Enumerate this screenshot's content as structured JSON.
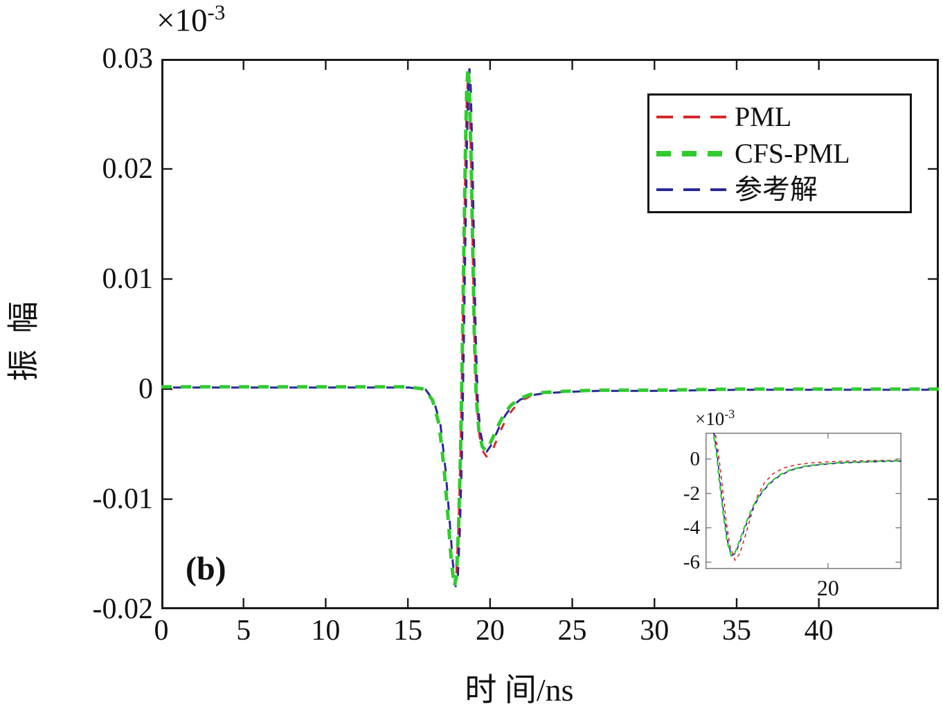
{
  "figure": {
    "panel_label": "(b)",
    "background": "#ffffff",
    "y_axis": {
      "title": "振 幅",
      "multiplier_base": "×10",
      "multiplier_exp": "-3"
    },
    "x_axis": {
      "title": "时 间/ns"
    },
    "legend": {
      "items": [
        {
          "label": "PML"
        },
        {
          "label": "CFS-PML"
        },
        {
          "label": "参考解"
        }
      ]
    }
  },
  "chart_data": {
    "type": "line",
    "title": "",
    "xlabel": "时 间/ns",
    "ylabel": "振 幅",
    "y_axis_multiplier": "×10^-3",
    "grid": false,
    "legend_position": "top-right",
    "x_range": [
      0,
      47.3
    ],
    "y_range": [
      -0.02,
      0.03
    ],
    "x_tick_values": [
      0,
      5,
      10,
      15,
      20,
      25,
      30,
      35,
      40
    ],
    "x_tick_labels": [
      "0",
      "5",
      "10",
      "15",
      "20",
      "25",
      "30",
      "35",
      "40"
    ],
    "y_tick_values": [
      0.03,
      0.02,
      0.01,
      0,
      -0.01,
      -0.02
    ],
    "y_tick_labels": [
      "0.03",
      "0.02",
      "0.01",
      "0",
      "-0.01",
      "-0.02"
    ],
    "series": [
      {
        "name": "PML",
        "color": "#d7282c",
        "dash": "dashed",
        "points": [
          [
            0,
            0.0002
          ],
          [
            4,
            0.0002
          ],
          [
            8,
            0.0002
          ],
          [
            12,
            0.0002
          ],
          [
            15,
            0.0002
          ],
          [
            16.0,
            0
          ],
          [
            16.5,
            -0.001
          ],
          [
            16.9,
            -0.0031
          ],
          [
            17.2,
            -0.007
          ],
          [
            17.45,
            -0.0115
          ],
          [
            17.65,
            -0.0152
          ],
          [
            17.82,
            -0.0174
          ],
          [
            17.95,
            -0.0167
          ],
          [
            18.08,
            -0.0124
          ],
          [
            18.2,
            -0.0058
          ],
          [
            18.3,
            0.0024
          ],
          [
            18.4,
            0.012
          ],
          [
            18.5,
            0.0208
          ],
          [
            18.58,
            0.0263
          ],
          [
            18.66,
            0.0284
          ],
          [
            18.74,
            0.0268
          ],
          [
            18.84,
            0.0207
          ],
          [
            18.94,
            0.0127
          ],
          [
            19.04,
            0.005
          ],
          [
            19.18,
            -0.0012
          ],
          [
            19.36,
            -0.0043
          ],
          [
            19.58,
            -0.0057
          ],
          [
            19.82,
            -0.0062
          ],
          [
            20.05,
            -0.0059
          ],
          [
            20.3,
            -0.005
          ],
          [
            20.6,
            -0.0039
          ],
          [
            20.95,
            -0.0028
          ],
          [
            21.35,
            -0.0019
          ],
          [
            21.85,
            -0.0011
          ],
          [
            22.5,
            -0.0006
          ],
          [
            23.4,
            -0.0003
          ],
          [
            24.6,
            -0.0002
          ],
          [
            26.5,
            -0.0001
          ],
          [
            30,
            -0.0001
          ],
          [
            35,
            0
          ],
          [
            40,
            0
          ],
          [
            47.3,
            0
          ]
        ]
      },
      {
        "name": "CFS-PML",
        "color": "#2fcc2f",
        "dash": "dashed",
        "points": [
          [
            0,
            0.0002
          ],
          [
            4,
            0.0002
          ],
          [
            8,
            0.0002
          ],
          [
            12,
            0.0002
          ],
          [
            15,
            0.0002
          ],
          [
            16.0,
            0
          ],
          [
            16.5,
            -0.001
          ],
          [
            16.9,
            -0.0032
          ],
          [
            17.2,
            -0.0072
          ],
          [
            17.45,
            -0.0118
          ],
          [
            17.65,
            -0.0157
          ],
          [
            17.82,
            -0.0179
          ],
          [
            17.95,
            -0.0171
          ],
          [
            18.08,
            -0.0126
          ],
          [
            18.2,
            -0.006
          ],
          [
            18.3,
            0.0025
          ],
          [
            18.4,
            0.0125
          ],
          [
            18.5,
            0.0215
          ],
          [
            18.58,
            0.0272
          ],
          [
            18.66,
            0.0292
          ],
          [
            18.74,
            0.0275
          ],
          [
            18.84,
            0.0212
          ],
          [
            18.94,
            0.013
          ],
          [
            19.04,
            0.0052
          ],
          [
            19.16,
            -0.0008
          ],
          [
            19.32,
            -0.0038
          ],
          [
            19.52,
            -0.0052
          ],
          [
            19.72,
            -0.0056
          ],
          [
            19.95,
            -0.0051
          ],
          [
            20.2,
            -0.0043
          ],
          [
            20.5,
            -0.0033
          ],
          [
            20.85,
            -0.0023
          ],
          [
            21.25,
            -0.0015
          ],
          [
            21.75,
            -0.0009
          ],
          [
            22.4,
            -0.0005
          ],
          [
            23.3,
            -0.0003
          ],
          [
            24.5,
            -0.0002
          ],
          [
            26.5,
            -0.0001
          ],
          [
            30,
            -0.0001
          ],
          [
            35,
            0
          ],
          [
            40,
            0
          ],
          [
            47.3,
            0
          ]
        ]
      },
      {
        "name": "参考解",
        "color": "#28289a",
        "dash": "dashed",
        "points": [
          [
            0,
            0.0002
          ],
          [
            4,
            0.0002
          ],
          [
            8,
            0.0002
          ],
          [
            12,
            0.0002
          ],
          [
            15,
            0.0002
          ],
          [
            16.0,
            0
          ],
          [
            16.5,
            -0.001
          ],
          [
            16.9,
            -0.0032
          ],
          [
            17.2,
            -0.0072
          ],
          [
            17.45,
            -0.0118
          ],
          [
            17.65,
            -0.0157
          ],
          [
            17.82,
            -0.0179
          ],
          [
            17.95,
            -0.0171
          ],
          [
            18.08,
            -0.0126
          ],
          [
            18.2,
            -0.006
          ],
          [
            18.3,
            0.0025
          ],
          [
            18.4,
            0.0125
          ],
          [
            18.5,
            0.0215
          ],
          [
            18.58,
            0.0272
          ],
          [
            18.66,
            0.0292
          ],
          [
            18.74,
            0.0275
          ],
          [
            18.84,
            0.0212
          ],
          [
            18.94,
            0.013
          ],
          [
            19.04,
            0.0052
          ],
          [
            19.16,
            -0.0008
          ],
          [
            19.32,
            -0.0038
          ],
          [
            19.52,
            -0.0052
          ],
          [
            19.72,
            -0.0056
          ],
          [
            19.95,
            -0.0051
          ],
          [
            20.2,
            -0.0043
          ],
          [
            20.5,
            -0.0033
          ],
          [
            20.85,
            -0.0023
          ],
          [
            21.25,
            -0.0015
          ],
          [
            21.75,
            -0.0009
          ],
          [
            22.4,
            -0.0005
          ],
          [
            23.3,
            -0.0003
          ],
          [
            24.5,
            -0.0002
          ],
          [
            26.5,
            -0.0001
          ],
          [
            30,
            -0.0001
          ],
          [
            35,
            0
          ],
          [
            40,
            0
          ],
          [
            47.3,
            0
          ]
        ]
      }
    ],
    "inset": {
      "type": "line",
      "multiplier_base": "×10",
      "multiplier_exp": "-3",
      "units": "1e-3",
      "x_range": [
        18.75,
        20.75
      ],
      "y_range": [
        -6.4,
        1.53
      ],
      "x_tick_values": [
        20
      ],
      "x_tick_labels": [
        "20"
      ],
      "y_tick_values": [
        0,
        -2,
        -4,
        -6
      ],
      "y_tick_labels": [
        "0",
        "-2",
        "-4",
        "-6"
      ],
      "series": [
        {
          "name": "PML",
          "color": "#d7282c",
          "points": [
            [
              18.84,
              1.8
            ],
            [
              18.88,
              0.4
            ],
            [
              18.92,
              -1.5
            ],
            [
              18.96,
              -3.6
            ],
            [
              19.0,
              -5.1
            ],
            [
              19.05,
              -5.88
            ],
            [
              19.1,
              -5.5
            ],
            [
              19.16,
              -4.4
            ],
            [
              19.22,
              -3.2
            ],
            [
              19.28,
              -2.15
            ],
            [
              19.35,
              -1.4
            ],
            [
              19.44,
              -0.85
            ],
            [
              19.55,
              -0.52
            ],
            [
              19.68,
              -0.33
            ],
            [
              19.84,
              -0.22
            ],
            [
              20.0,
              -0.16
            ],
            [
              20.2,
              -0.12
            ],
            [
              20.45,
              -0.09
            ],
            [
              20.75,
              -0.07
            ]
          ]
        },
        {
          "name": "CFS-PML",
          "color": "#2fcc2f",
          "points": [
            [
              18.82,
              1.8
            ],
            [
              18.86,
              0.4
            ],
            [
              18.89,
              -1.2
            ],
            [
              18.93,
              -3.2
            ],
            [
              18.97,
              -4.8
            ],
            [
              19.01,
              -5.6
            ],
            [
              19.05,
              -5.45
            ],
            [
              19.1,
              -4.7
            ],
            [
              19.16,
              -3.75
            ],
            [
              19.23,
              -2.8
            ],
            [
              19.31,
              -2.0
            ],
            [
              19.4,
              -1.4
            ],
            [
              19.5,
              -0.95
            ],
            [
              19.62,
              -0.62
            ],
            [
              19.76,
              -0.42
            ],
            [
              19.92,
              -0.3
            ],
            [
              20.1,
              -0.22
            ],
            [
              20.3,
              -0.17
            ],
            [
              20.5,
              -0.13
            ],
            [
              20.75,
              -0.1
            ]
          ]
        },
        {
          "name": "参考解",
          "color": "#28289a",
          "points": [
            [
              18.82,
              1.8
            ],
            [
              18.86,
              0.4
            ],
            [
              18.89,
              -1.2
            ],
            [
              18.93,
              -3.2
            ],
            [
              18.97,
              -4.8
            ],
            [
              19.01,
              -5.6
            ],
            [
              19.05,
              -5.45
            ],
            [
              19.1,
              -4.7
            ],
            [
              19.16,
              -3.75
            ],
            [
              19.23,
              -2.8
            ],
            [
              19.31,
              -2.0
            ],
            [
              19.4,
              -1.4
            ],
            [
              19.5,
              -0.95
            ],
            [
              19.62,
              -0.62
            ],
            [
              19.76,
              -0.42
            ],
            [
              19.92,
              -0.3
            ],
            [
              20.1,
              -0.22
            ],
            [
              20.3,
              -0.17
            ],
            [
              20.5,
              -0.13
            ],
            [
              20.75,
              -0.1
            ]
          ]
        }
      ]
    }
  }
}
